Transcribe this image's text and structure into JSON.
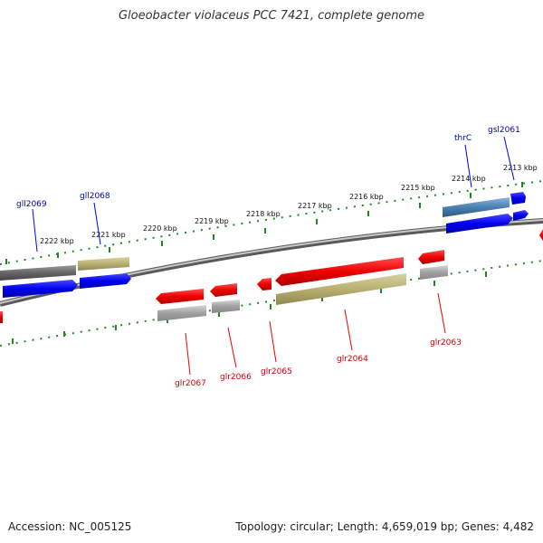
{
  "title": "Gloeobacter violaceus PCC 7421, complete genome",
  "footer": {
    "accession": "Accession: NC_005125",
    "summary": "Topology: circular; Length: 4,659,019 bp; Genes: 4,482"
  },
  "colors": {
    "backbone": "#8a8a8a",
    "tick": "#1f8a1f",
    "forward_gene": "#0000ee",
    "reverse_gene": "#ee0000",
    "forward_label": "#0000aa",
    "reverse_label": "#cc0000",
    "product_grey": "#9a9a9a",
    "product_olive": "#b8b070",
    "product_dark": "#666666",
    "product_steel": "#4a80b0"
  },
  "scale_labels": [
    "2222 kbp",
    "2221 kbp",
    "2220 kbp",
    "2219 kbp",
    "2218 kbp",
    "2217 kbp",
    "2216 kbp",
    "2215 kbp",
    "2214 kbp",
    "2213 kbp"
  ],
  "genes": {
    "forward": [
      {
        "label": "gll2069"
      },
      {
        "label": "gll2068"
      },
      {
        "label": "thrC"
      },
      {
        "label": "gsl2061"
      }
    ],
    "reverse": [
      {
        "label": "glr2067"
      },
      {
        "label": "glr2066"
      },
      {
        "label": "glr2065"
      },
      {
        "label": "glr2064"
      },
      {
        "label": "glr2063"
      }
    ]
  }
}
